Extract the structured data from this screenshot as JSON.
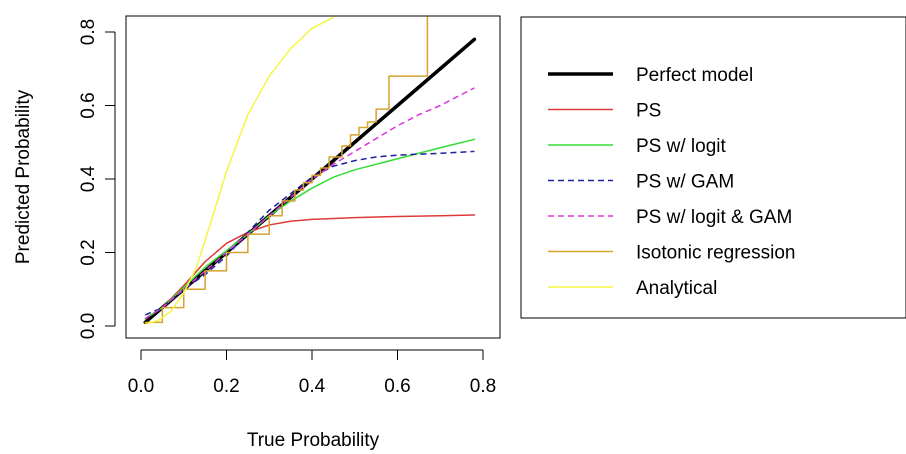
{
  "chart_data": {
    "type": "line",
    "xlabel": "True Probability",
    "ylabel": "Predicted Probability",
    "xlim": [
      0.0,
      0.8
    ],
    "ylim": [
      -0.02,
      0.84
    ],
    "x_ticks": [
      "0.0",
      "0.2",
      "0.4",
      "0.6",
      "0.8"
    ],
    "y_ticks": [
      "0.0",
      "0.2",
      "0.4",
      "0.6",
      "0.8"
    ],
    "grid": false,
    "legend_position": "right",
    "series": [
      {
        "name": "Perfect model",
        "color": "#000000",
        "dash": "solid",
        "width": "thick",
        "points": [
          [
            0.01,
            0.01
          ],
          [
            0.1,
            0.1
          ],
          [
            0.2,
            0.2
          ],
          [
            0.3,
            0.3
          ],
          [
            0.4,
            0.4
          ],
          [
            0.5,
            0.5
          ],
          [
            0.6,
            0.6
          ],
          [
            0.7,
            0.7
          ],
          [
            0.78,
            0.78
          ]
        ]
      },
      {
        "name": "PS",
        "color": "#DF3A3A",
        "dash": "solid",
        "width": "thin",
        "points": [
          [
            0.01,
            0.02
          ],
          [
            0.05,
            0.05
          ],
          [
            0.1,
            0.11
          ],
          [
            0.15,
            0.175
          ],
          [
            0.2,
            0.225
          ],
          [
            0.25,
            0.255
          ],
          [
            0.3,
            0.275
          ],
          [
            0.35,
            0.285
          ],
          [
            0.4,
            0.29
          ],
          [
            0.5,
            0.295
          ],
          [
            0.6,
            0.298
          ],
          [
            0.7,
            0.3
          ],
          [
            0.78,
            0.302
          ]
        ]
      },
      {
        "name": "PS w/ logit",
        "color": "#33DD33",
        "dash": "solid",
        "width": "thin",
        "points": [
          [
            0.01,
            0.02
          ],
          [
            0.05,
            0.05
          ],
          [
            0.1,
            0.105
          ],
          [
            0.15,
            0.16
          ],
          [
            0.2,
            0.205
          ],
          [
            0.25,
            0.25
          ],
          [
            0.3,
            0.3
          ],
          [
            0.35,
            0.34
          ],
          [
            0.4,
            0.375
          ],
          [
            0.45,
            0.405
          ],
          [
            0.5,
            0.425
          ],
          [
            0.55,
            0.44
          ],
          [
            0.6,
            0.455
          ],
          [
            0.7,
            0.485
          ],
          [
            0.78,
            0.508
          ]
        ]
      },
      {
        "name": "PS w/ GAM",
        "color": "#1F1FA0",
        "dash": "dashed",
        "width": "thin",
        "points": [
          [
            0.01,
            0.03
          ],
          [
            0.05,
            0.05
          ],
          [
            0.1,
            0.1
          ],
          [
            0.15,
            0.14
          ],
          [
            0.2,
            0.19
          ],
          [
            0.25,
            0.255
          ],
          [
            0.3,
            0.315
          ],
          [
            0.35,
            0.36
          ],
          [
            0.4,
            0.405
          ],
          [
            0.45,
            0.435
          ],
          [
            0.5,
            0.45
          ],
          [
            0.55,
            0.46
          ],
          [
            0.6,
            0.465
          ],
          [
            0.7,
            0.47
          ],
          [
            0.78,
            0.475
          ]
        ]
      },
      {
        "name": "PS w/ logit & GAM",
        "color": "#DD33DD",
        "dash": "dashed",
        "width": "thin",
        "points": [
          [
            0.01,
            0.02
          ],
          [
            0.05,
            0.05
          ],
          [
            0.1,
            0.1
          ],
          [
            0.15,
            0.15
          ],
          [
            0.2,
            0.2
          ],
          [
            0.25,
            0.25
          ],
          [
            0.3,
            0.3
          ],
          [
            0.35,
            0.35
          ],
          [
            0.4,
            0.4
          ],
          [
            0.45,
            0.44
          ],
          [
            0.5,
            0.475
          ],
          [
            0.55,
            0.51
          ],
          [
            0.6,
            0.545
          ],
          [
            0.65,
            0.575
          ],
          [
            0.7,
            0.6
          ],
          [
            0.78,
            0.648
          ]
        ]
      },
      {
        "name": "Isotonic regression",
        "color": "#D6A32E",
        "dash": "solid",
        "width": "thin",
        "step": true,
        "points": [
          [
            0.01,
            0.01
          ],
          [
            0.05,
            0.05
          ],
          [
            0.1,
            0.1
          ],
          [
            0.15,
            0.15
          ],
          [
            0.2,
            0.2
          ],
          [
            0.25,
            0.25
          ],
          [
            0.3,
            0.3
          ],
          [
            0.33,
            0.34
          ],
          [
            0.36,
            0.37
          ],
          [
            0.38,
            0.39
          ],
          [
            0.4,
            0.41
          ],
          [
            0.42,
            0.43
          ],
          [
            0.44,
            0.46
          ],
          [
            0.47,
            0.49
          ],
          [
            0.49,
            0.52
          ],
          [
            0.51,
            0.54
          ],
          [
            0.53,
            0.555
          ],
          [
            0.55,
            0.59
          ],
          [
            0.58,
            0.68
          ],
          [
            0.62,
            0.68
          ],
          [
            0.67,
            0.84
          ],
          [
            0.67,
            0.84
          ]
        ]
      },
      {
        "name": "Analytical",
        "color": "#F5F545",
        "dash": "solid",
        "width": "thin",
        "points": [
          [
            0.01,
            0.005
          ],
          [
            0.04,
            0.015
          ],
          [
            0.07,
            0.04
          ],
          [
            0.1,
            0.09
          ],
          [
            0.13,
            0.16
          ],
          [
            0.16,
            0.27
          ],
          [
            0.2,
            0.42
          ],
          [
            0.25,
            0.575
          ],
          [
            0.3,
            0.68
          ],
          [
            0.35,
            0.755
          ],
          [
            0.4,
            0.81
          ],
          [
            0.45,
            0.84
          ]
        ]
      }
    ]
  }
}
